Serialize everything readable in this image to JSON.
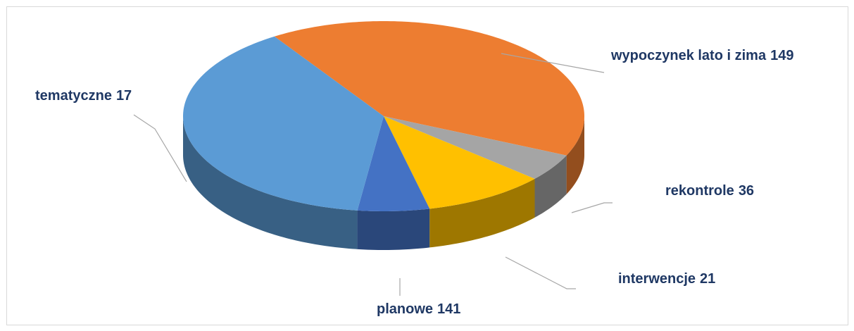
{
  "chart_data": {
    "type": "pie",
    "categories": [
      "wypoczynek lato i zima",
      "tematyczne",
      "rekontrole",
      "interwencje",
      "planowe"
    ],
    "values": [
      149,
      17,
      36,
      21,
      141
    ],
    "colors": [
      "#ed7d31",
      "#a5a5a5",
      "#ffc000",
      "#4472c4",
      "#5b9bd5"
    ]
  }
}
